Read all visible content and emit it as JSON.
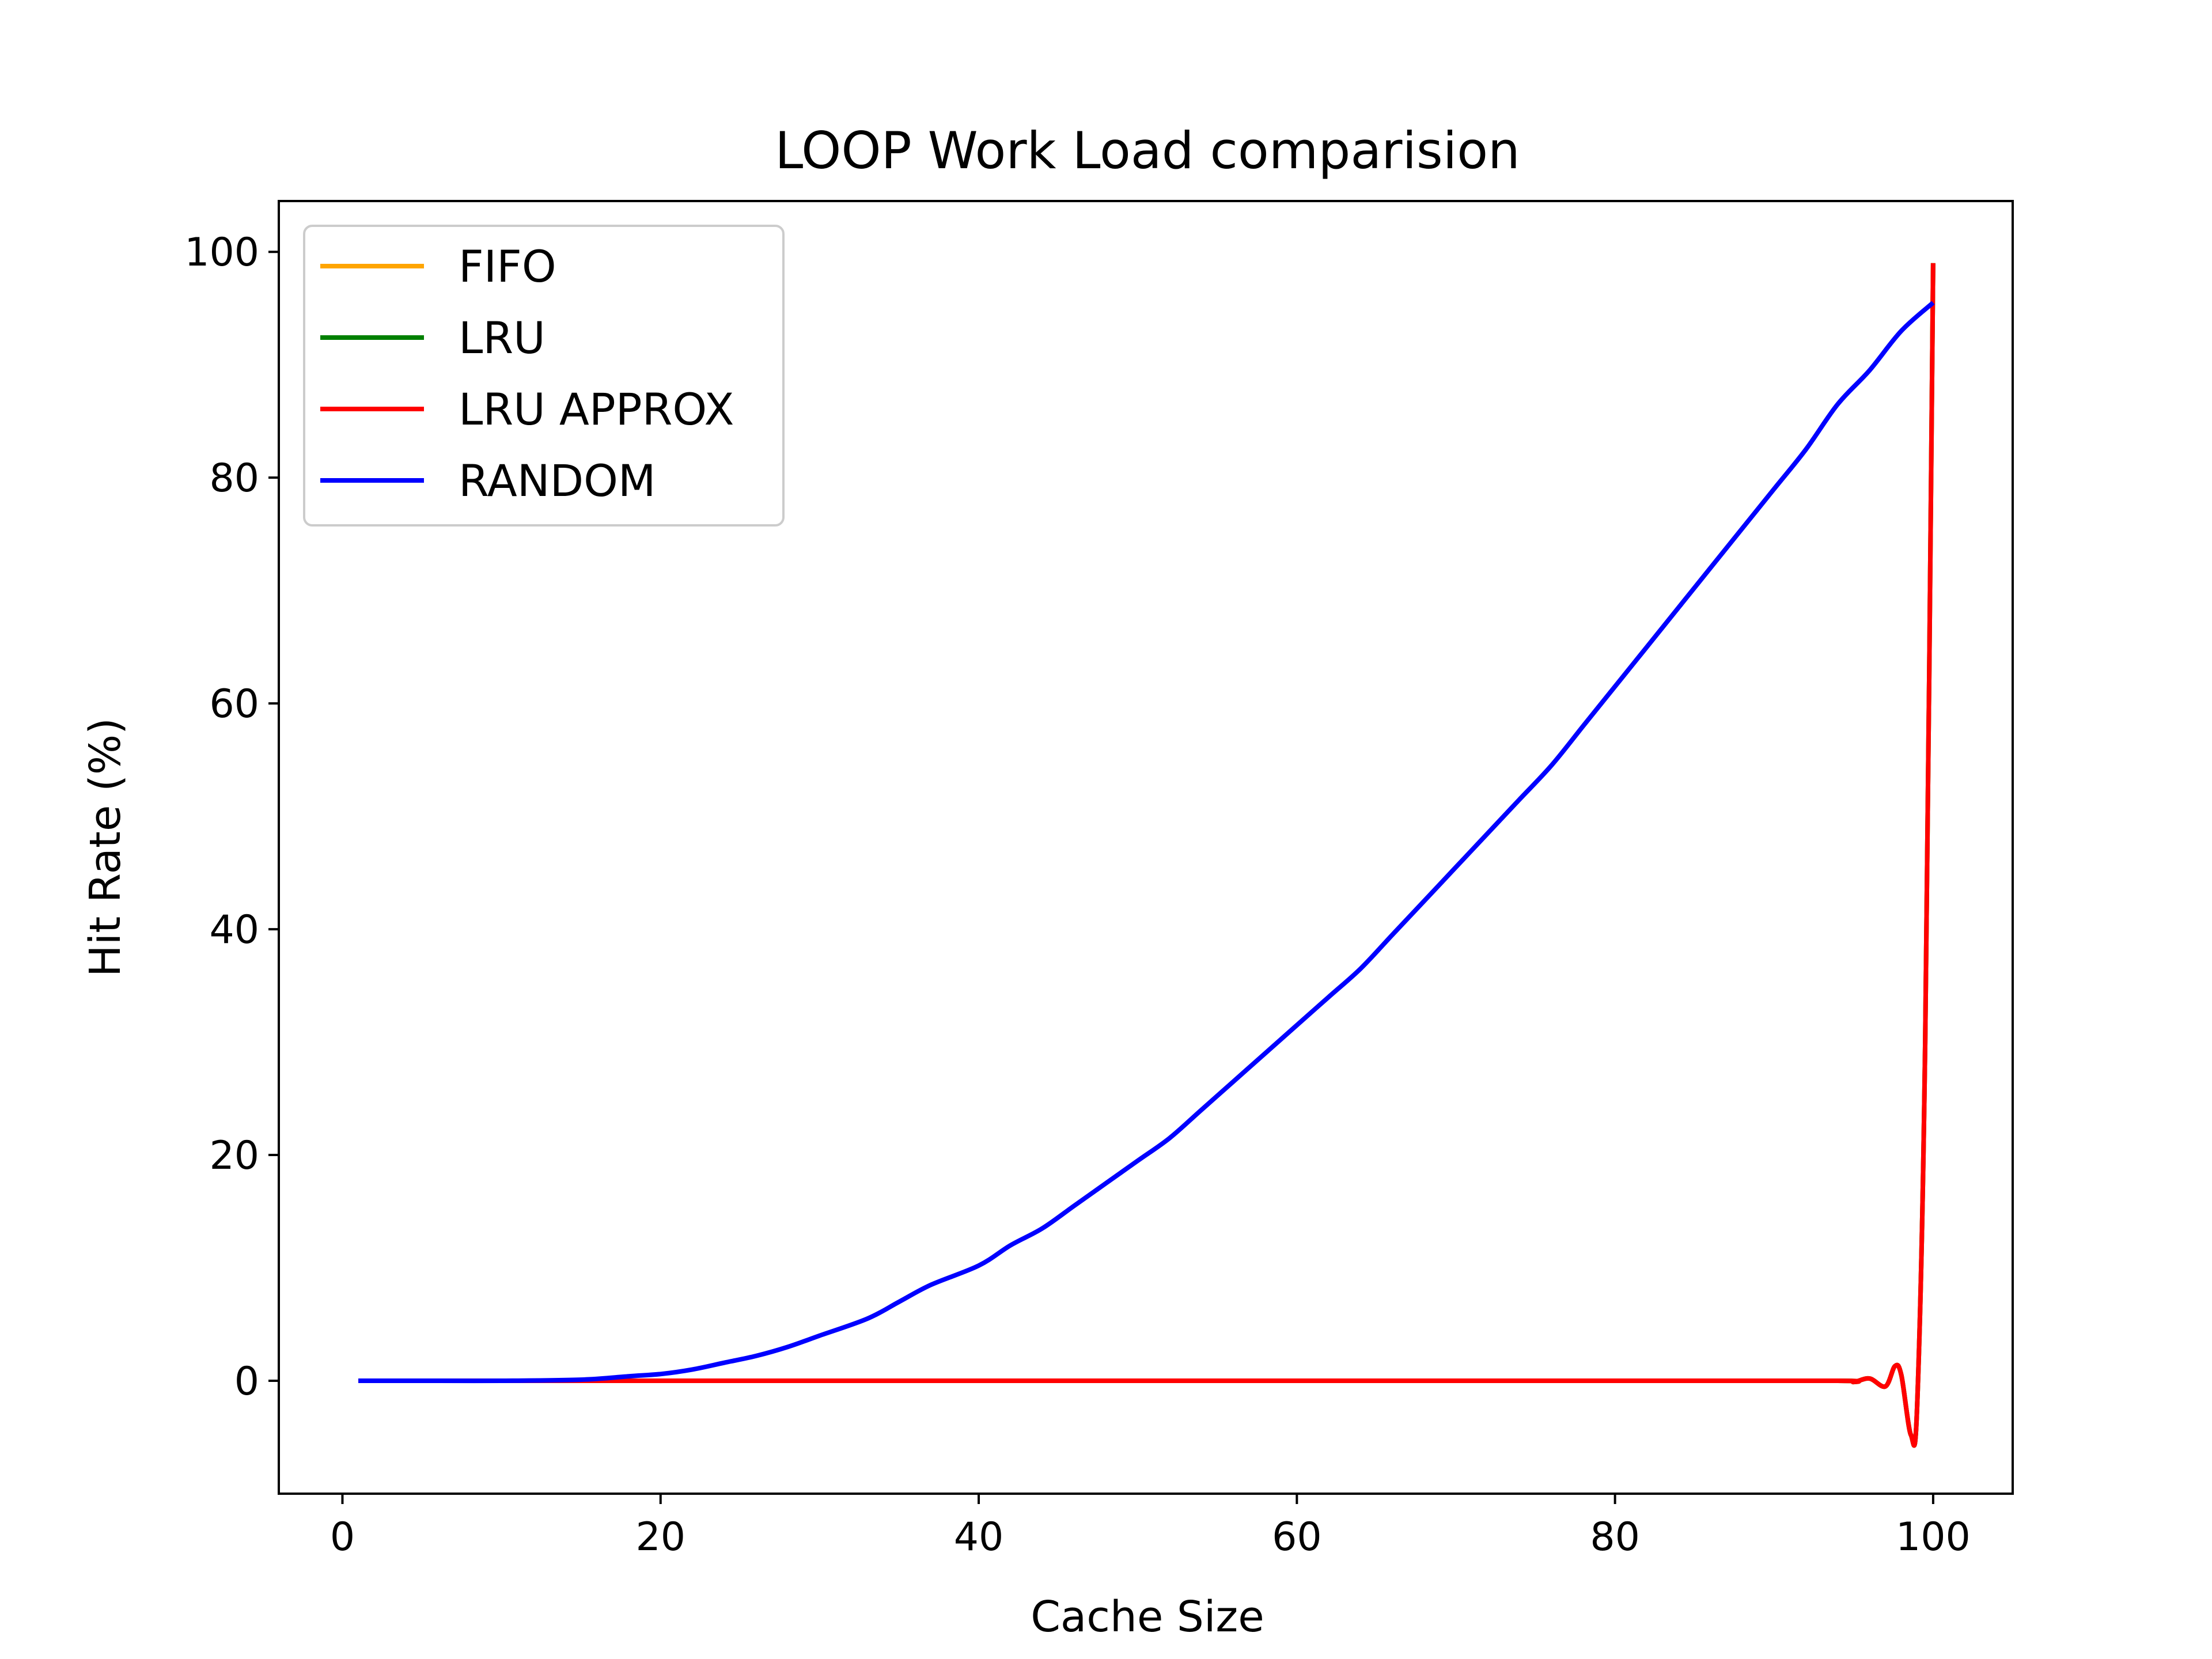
{
  "chart_data": {
    "type": "line",
    "title": "LOOP Work Load comparision",
    "xlabel": "Cache Size",
    "ylabel": "Hit Rate (%)",
    "xlim": [
      -4,
      105
    ],
    "ylim": [
      -10,
      104.5
    ],
    "xticks": [
      0,
      20,
      40,
      60,
      80,
      100
    ],
    "yticks": [
      0,
      20,
      40,
      60,
      80,
      100
    ],
    "grid": false,
    "legend_position": "upper-left",
    "series": [
      {
        "name": "FIFO",
        "color": "#ffa500",
        "x": [
          1,
          20,
          40,
          60,
          80,
          94,
          95,
          96,
          97,
          97.6,
          98,
          98.6,
          99,
          99.5,
          100
        ],
        "y": [
          0,
          0,
          0,
          0,
          0,
          0,
          -0.1,
          0.2,
          -0.5,
          1.3,
          0.5,
          -4.8,
          -2,
          30,
          99
        ]
      },
      {
        "name": "LRU",
        "color": "#008000",
        "x": [
          1,
          20,
          40,
          60,
          80,
          94,
          95,
          96,
          97,
          97.6,
          98,
          98.6,
          99,
          99.5,
          100
        ],
        "y": [
          0,
          0,
          0,
          0,
          0,
          0,
          -0.1,
          0.2,
          -0.5,
          1.3,
          0.5,
          -4.8,
          -2,
          30,
          99
        ]
      },
      {
        "name": "LRU APPROX",
        "color": "#ff0000",
        "x": [
          1,
          20,
          40,
          60,
          80,
          94,
          95,
          96,
          97,
          97.6,
          98,
          98.6,
          99,
          99.5,
          100
        ],
        "y": [
          0,
          0,
          0,
          0,
          0,
          0,
          -0.1,
          0.2,
          -0.5,
          1.3,
          0.5,
          -4.8,
          -2,
          30,
          99
        ]
      },
      {
        "name": "RANDOM",
        "color": "#0000ff",
        "x": [
          1,
          5,
          10,
          15,
          18,
          20,
          22,
          24,
          26,
          28,
          30,
          33,
          35,
          37,
          40,
          42,
          44,
          46,
          48,
          50,
          52,
          54,
          56,
          58,
          60,
          62,
          64,
          66,
          68,
          70,
          72,
          74,
          76,
          78,
          80,
          82,
          84,
          86,
          88,
          90,
          92,
          94,
          96,
          98,
          100
        ],
        "y": [
          0,
          0,
          0,
          0.1,
          0.4,
          0.6,
          1.0,
          1.6,
          2.2,
          3.0,
          4.0,
          5.5,
          7.0,
          8.5,
          10.2,
          12.0,
          13.5,
          15.5,
          17.5,
          19.5,
          21.5,
          24.0,
          26.5,
          29.0,
          31.5,
          34.0,
          36.5,
          39.5,
          42.5,
          45.5,
          48.5,
          51.5,
          54.5,
          58.0,
          61.5,
          65.0,
          68.5,
          72.0,
          75.5,
          79.0,
          82.5,
          86.5,
          89.5,
          93.0,
          95.5
        ]
      }
    ]
  }
}
